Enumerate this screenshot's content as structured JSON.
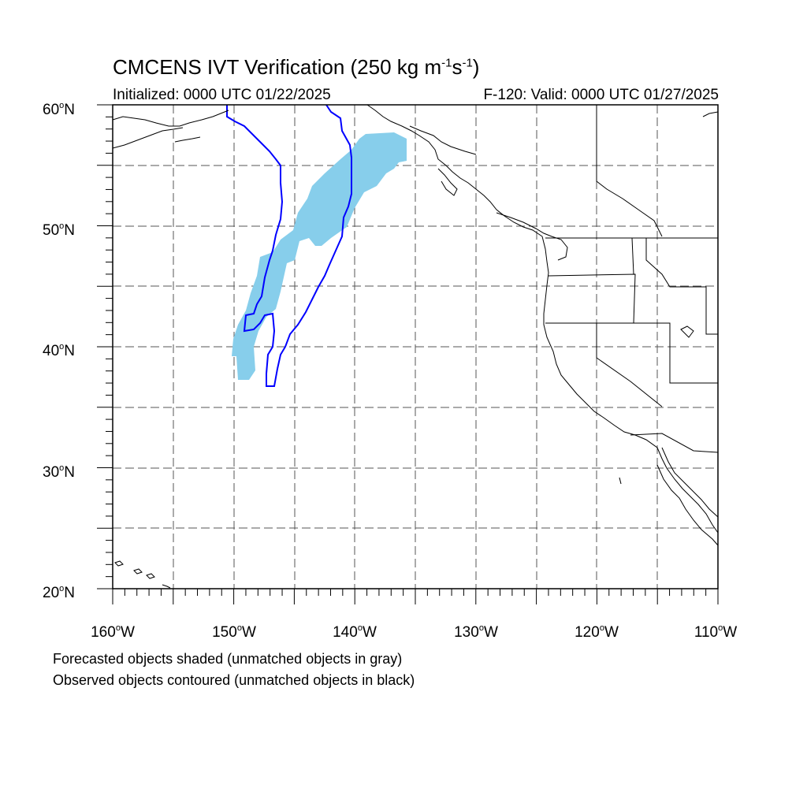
{
  "title": {
    "prefix": "CMCENS IVT Verification (250 kg m",
    "sup1": "-1",
    "mid": "s",
    "sup2": "-1",
    "suffix": ")"
  },
  "subtitle_left": "Initialized: 0000 UTC 01/22/2025",
  "subtitle_right": "F-120: Valid: 0000 UTC 01/27/2025",
  "lat_labels": [
    {
      "num": "60",
      "deg": "o",
      "dir": "N"
    },
    {
      "num": "50",
      "deg": "o",
      "dir": "N"
    },
    {
      "num": "40",
      "deg": "o",
      "dir": "N"
    },
    {
      "num": "30",
      "deg": "o",
      "dir": "N"
    },
    {
      "num": "20",
      "deg": "o",
      "dir": "N"
    }
  ],
  "lon_labels": [
    {
      "num": "160",
      "deg": "o",
      "dir": "W"
    },
    {
      "num": "150",
      "deg": "o",
      "dir": "W"
    },
    {
      "num": "140",
      "deg": "o",
      "dir": "W"
    },
    {
      "num": "130",
      "deg": "o",
      "dir": "W"
    },
    {
      "num": "120",
      "deg": "o",
      "dir": "W"
    },
    {
      "num": "110",
      "deg": "o",
      "dir": "W"
    }
  ],
  "footer": [
    "Forecasted objects shaded (unmatched objects in gray)",
    "Observed objects contoured (unmatched objects in black)"
  ],
  "map_extent": {
    "lon_min": -160,
    "lon_max": -110,
    "lat_min": 20,
    "lat_max": 60
  },
  "colors": {
    "forecast_shading": "#87ceeb",
    "observed_contour": "#0000ff",
    "coastline": "#000000"
  }
}
